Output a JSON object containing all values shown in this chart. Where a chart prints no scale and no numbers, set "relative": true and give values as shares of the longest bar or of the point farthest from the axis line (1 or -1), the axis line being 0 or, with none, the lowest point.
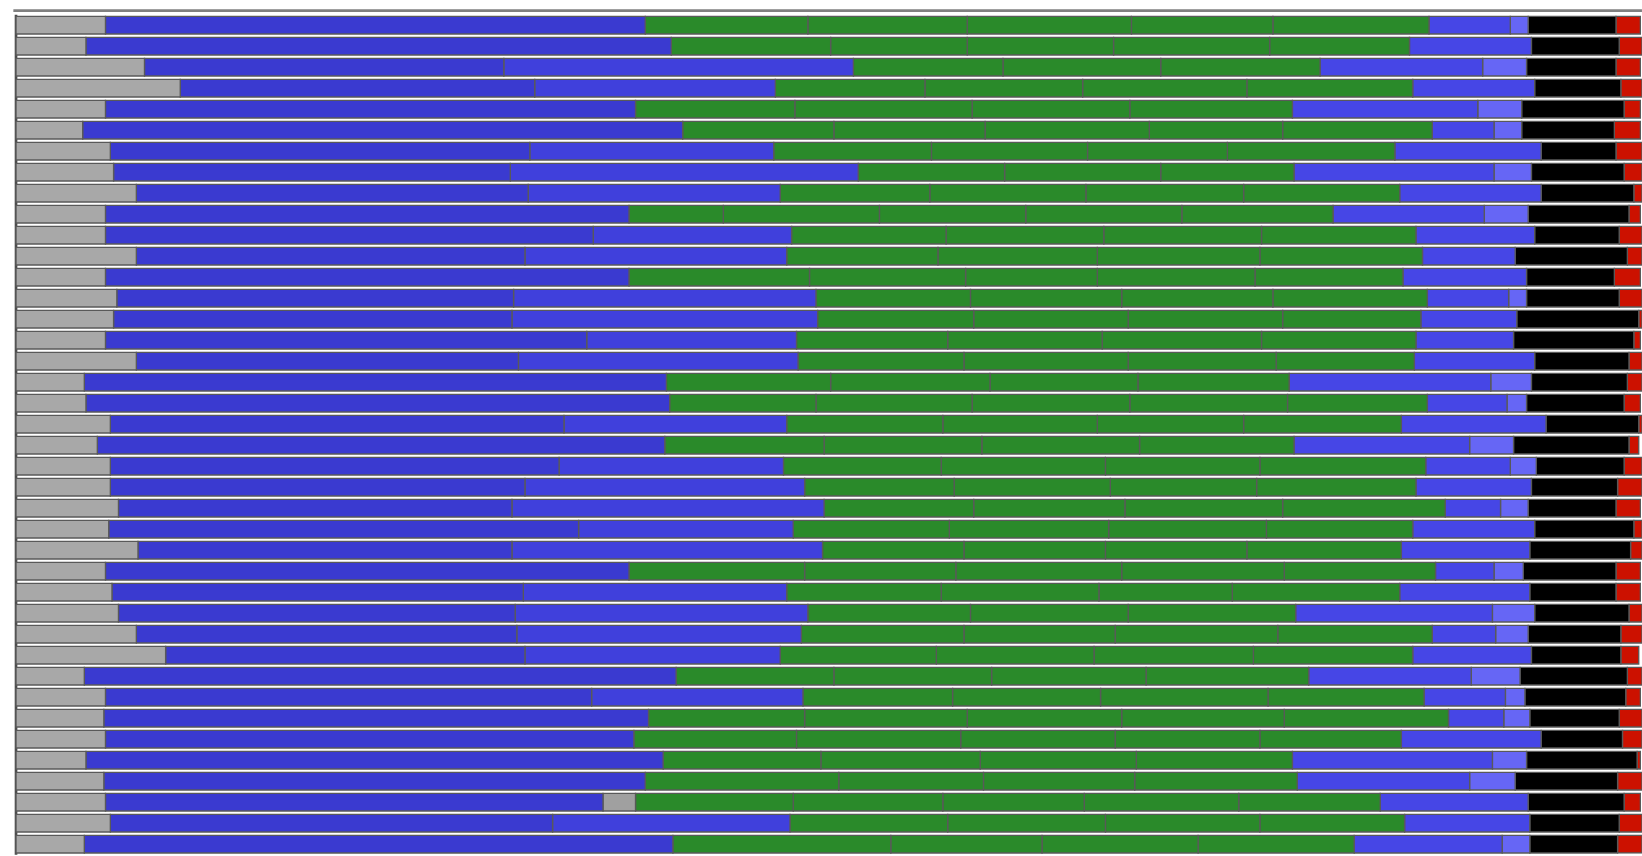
{
  "chart_data": {
    "type": "bar",
    "orientation": "horizontal",
    "stacked": true,
    "relative": true,
    "categories": [
      null,
      null,
      null,
      null,
      null,
      null,
      null,
      null,
      null,
      null,
      null,
      null,
      null,
      null,
      null,
      null,
      null,
      null,
      null,
      null,
      null,
      null,
      null,
      null,
      null,
      null,
      null,
      null,
      null,
      null,
      null,
      null,
      null,
      null,
      null,
      null,
      null,
      null,
      null,
      null
    ],
    "series": [
      {
        "color": "#a8a8a8",
        "values": [
          0.055,
          0.043,
          0.079,
          0.101,
          0.055,
          0.041,
          0.058,
          0.06,
          0.074,
          0.055,
          0.055,
          0.074,
          0.055,
          0.062,
          0.06,
          0.055,
          0.074,
          0.042,
          0.043,
          0.058,
          0.05,
          0.058,
          0.058,
          0.063,
          0.057,
          0.075,
          0.055,
          0.059,
          0.063,
          0.074,
          0.092,
          0.042,
          0.055,
          0.054,
          0.055,
          0.043,
          0.054,
          0.055,
          0.058,
          0.042
        ]
      },
      {
        "color": "#3a3ad0",
        "values": [
          0.332,
          0.36,
          0.221,
          0.218,
          0.326,
          0.369,
          0.258,
          0.244,
          0.241,
          0.322,
          0.3,
          0.239,
          0.322,
          0.244,
          0.245,
          0.296,
          0.235,
          0.358,
          0.359,
          0.279,
          0.349,
          0.276,
          0.255,
          0.242,
          0.289,
          0.23,
          0.322,
          0.253,
          0.244,
          0.234,
          0.221,
          0.364,
          0.299,
          0.335,
          0.325,
          0.355,
          0.333,
          0.306,
          0.272,
          0.362
        ]
      },
      {
        "color": "#4040dc",
        "values": [
          null,
          null,
          0.215,
          0.148,
          null,
          null,
          0.15,
          0.214,
          0.155,
          null,
          0.122,
          0.161,
          null,
          0.186,
          0.188,
          0.129,
          0.172,
          null,
          null,
          0.137,
          null,
          0.138,
          0.172,
          0.192,
          0.132,
          0.191,
          null,
          0.162,
          0.18,
          0.175,
          0.157,
          null,
          0.13,
          null,
          null,
          null,
          null,
          null,
          0.146,
          null
        ]
      },
      {
        "color": "#a0a0a0",
        "values": [
          null,
          null,
          null,
          null,
          null,
          null,
          null,
          null,
          null,
          null,
          null,
          null,
          null,
          null,
          null,
          null,
          null,
          null,
          null,
          null,
          null,
          null,
          null,
          null,
          null,
          null,
          null,
          null,
          null,
          null,
          null,
          null,
          null,
          null,
          null,
          null,
          null,
          0.02,
          null,
          null
        ]
      },
      {
        "color": "#2a8a2a",
        "values": [
          0.1,
          0.098,
          0.092,
          0.092,
          0.098,
          0.093,
          0.097,
          0.09,
          0.092,
          0.058,
          0.095,
          0.093,
          0.111,
          0.095,
          0.096,
          0.093,
          0.102,
          0.101,
          0.09,
          0.096,
          0.098,
          0.097,
          0.092,
          0.092,
          0.096,
          0.087,
          0.108,
          0.095,
          0.1,
          0.1,
          0.096,
          0.097,
          0.092,
          0.096,
          0.1,
          0.097,
          0.119,
          0.097,
          0.097,
          0.134
        ]
      },
      {
        "color": "#2a8a2a",
        "values": [
          0.098,
          0.084,
          0.097,
          0.097,
          0.109,
          0.093,
          0.096,
          0.096,
          0.096,
          0.096,
          0.097,
          0.098,
          0.096,
          0.093,
          0.095,
          0.095,
          0.101,
          0.098,
          0.096,
          0.095,
          0.097,
          0.101,
          0.096,
          0.093,
          0.098,
          0.087,
          0.093,
          0.097,
          0.097,
          0.093,
          0.097,
          0.097,
          0.091,
          0.1,
          0.101,
          0.098,
          0.089,
          0.092,
          0.097,
          0.093
        ]
      },
      {
        "color": "#2a8a2a",
        "values": [
          0.101,
          0.09,
          0.098,
          0.101,
          0.097,
          0.101,
          0.086,
          0.082,
          0.097,
          0.09,
          0.097,
          0.1,
          0.081,
          0.093,
          0.095,
          0.098,
          0.091,
          0.091,
          0.097,
          0.09,
          0.097,
          0.095,
          0.09,
          0.097,
          0.097,
          0.087,
          0.102,
          0.082,
          0.103,
          0.1,
          0.098,
          0.095,
          0.103,
          0.095,
          0.095,
          0.096,
          0.093,
          0.087,
          0.095,
          0.096
        ]
      },
      {
        "color": "#2a8a2a",
        "values": [
          0.087,
          0.096,
          null,
          0.102,
          0.1,
          0.082,
          0.103,
          null,
          0.096,
          0.096,
          0.095,
          0.1,
          0.097,
          0.095,
          0.085,
          0.095,
          0.085,
          0.093,
          0.097,
          0.097,
          0.095,
          0.102,
          0.098,
          0.1,
          0.09,
          0.095,
          0.1,
          0.103,
          null,
          0.095,
          0.098,
          0.1,
          0.096,
          0.1,
          0.089,
          0.096,
          0.1,
          0.095,
          0.089,
          0.096
        ]
      },
      {
        "color": "#2a8a2a",
        "values": [
          0.096,
          0.086,
          null,
          null,
          null,
          0.092,
          null,
          null,
          null,
          0.093,
          null,
          null,
          0.091,
          null,
          null,
          null,
          null,
          null,
          0.086,
          null,
          null,
          null,
          null,
          null,
          null,
          null,
          0.093,
          null,
          null,
          null,
          null,
          null,
          null,
          0.101,
          0.087,
          null,
          null,
          0.087,
          null,
          null
        ]
      },
      {
        "color": "#4646e6",
        "values": [
          0.05,
          0.075,
          0.1,
          0.075,
          0.114,
          0.038,
          0.09,
          0.123,
          0.087,
          0.093,
          0.073,
          0.057,
          0.076,
          0.05,
          0.059,
          0.06,
          0.074,
          0.124,
          0.049,
          0.089,
          0.108,
          0.052,
          0.071,
          0.034,
          0.075,
          0.079,
          0.036,
          0.08,
          0.121,
          0.039,
          0.073,
          0.1,
          0.05,
          0.034,
          0.086,
          0.123,
          0.106,
          0.091,
          0.077,
          0.091
        ]
      },
      {
        "color": "#6666f5",
        "values": [
          0.011,
          null,
          0.027,
          null,
          0.027,
          0.017,
          null,
          0.023,
          null,
          0.027,
          null,
          null,
          null,
          0.011,
          null,
          null,
          null,
          0.025,
          0.012,
          null,
          0.027,
          0.016,
          null,
          0.017,
          null,
          null,
          0.018,
          null,
          0.026,
          0.02,
          null,
          0.03,
          0.012,
          0.016,
          null,
          0.021,
          0.028,
          null,
          null,
          0.017
        ]
      },
      {
        "color": "#000000",
        "values": [
          0.054,
          0.054,
          0.055,
          0.053,
          0.063,
          0.057,
          0.046,
          0.057,
          0.057,
          0.062,
          0.052,
          0.069,
          0.054,
          0.057,
          0.075,
          0.074,
          0.058,
          0.059,
          0.06,
          0.057,
          0.071,
          0.054,
          0.053,
          0.054,
          0.061,
          0.062,
          0.057,
          0.053,
          0.058,
          0.057,
          0.055,
          0.066,
          0.062,
          0.055,
          0.05,
          0.068,
          0.063,
          0.059,
          0.055,
          0.054
        ]
      },
      {
        "color": "#cc1100",
        "values": [
          0.015,
          0.014,
          0.015,
          0.013,
          0.01,
          0.016,
          0.016,
          0.011,
          0.005,
          0.007,
          0.014,
          0.009,
          0.016,
          0.014,
          0.002,
          0.004,
          0.008,
          0.009,
          0.01,
          0.002,
          0.006,
          0.011,
          0.015,
          0.015,
          0.005,
          0.007,
          0.015,
          0.015,
          0.008,
          0.013,
          0.011,
          0.009,
          0.009,
          0.014,
          0.012,
          0.002,
          0.015,
          0.01,
          0.014,
          0.015
        ]
      }
    ]
  }
}
